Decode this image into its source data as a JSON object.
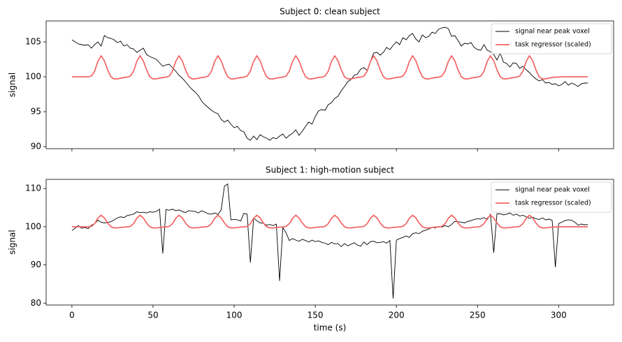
{
  "chart_data": [
    {
      "type": "line",
      "title": "Subject 0: clean subject",
      "ylabel": "signal",
      "x": [
        0,
        2,
        4,
        6,
        8,
        10,
        12,
        14,
        16,
        18,
        20,
        22,
        24,
        26,
        28,
        30,
        32,
        34,
        36,
        38,
        40,
        42,
        44,
        46,
        48,
        50,
        52,
        54,
        56,
        58,
        60,
        62,
        64,
        66,
        68,
        70,
        72,
        74,
        76,
        78,
        80,
        82,
        84,
        86,
        88,
        90,
        92,
        94,
        96,
        98,
        100,
        102,
        104,
        106,
        108,
        110,
        112,
        114,
        116,
        118,
        120,
        122,
        124,
        126,
        128,
        130,
        132,
        134,
        136,
        138,
        140,
        142,
        144,
        146,
        148,
        150,
        152,
        154,
        156,
        158,
        160,
        162,
        164,
        166,
        168,
        170,
        172,
        174,
        176,
        178,
        180,
        182,
        184,
        186,
        188,
        190,
        192,
        194,
        196,
        198,
        200,
        202,
        204,
        206,
        208,
        210,
        212,
        214,
        216,
        218,
        220,
        222,
        224,
        226,
        228,
        230,
        232,
        234,
        236,
        238,
        240,
        242,
        244,
        246,
        248,
        250,
        252,
        254,
        256,
        258,
        260,
        262,
        264,
        266,
        268,
        270,
        272,
        274,
        276,
        278,
        280,
        282,
        284,
        286,
        288,
        290,
        292,
        294,
        296,
        298,
        300,
        302,
        304,
        306,
        308,
        310,
        312,
        314,
        316,
        318
      ],
      "xlim": [
        -15.9,
        333.9
      ],
      "xticks": [
        0,
        50,
        100,
        150,
        200,
        250,
        300
      ],
      "xtick_labels": false,
      "ylim": [
        89.7,
        108
      ],
      "yticks": [
        90,
        95,
        100,
        105
      ],
      "legend": "upper right",
      "series": [
        {
          "name": "signal near peak voxel",
          "color": "#000000",
          "values": [
            105.3,
            105.0,
            104.7,
            104.6,
            104.5,
            104.6,
            104.1,
            104.6,
            105.0,
            104.4,
            105.9,
            105.6,
            105.5,
            105.3,
            104.9,
            105.1,
            104.4,
            104.6,
            104.1,
            104.0,
            103.5,
            103.8,
            104.1,
            103.2,
            102.9,
            102.7,
            102.5,
            102.0,
            101.5,
            101.7,
            101.8,
            101.3,
            100.8,
            100.2,
            99.8,
            99.3,
            98.7,
            98.2,
            97.8,
            97.3,
            96.5,
            96.0,
            95.6,
            95.2,
            94.9,
            94.7,
            93.9,
            93.5,
            93.8,
            93.2,
            92.7,
            92.9,
            92.3,
            92.1,
            91.2,
            90.9,
            91.5,
            91.0,
            91.7,
            91.4,
            91.2,
            90.9,
            91.3,
            91.1,
            91.5,
            91.8,
            91.2,
            91.6,
            91.9,
            92.4,
            91.6,
            92.2,
            92.9,
            93.5,
            93.2,
            94.3,
            95.1,
            95.3,
            95.2,
            96.0,
            96.3,
            96.9,
            97.2,
            98.0,
            98.6,
            99.3,
            99.6,
            100.2,
            100.4,
            101.1,
            101.3,
            100.9,
            102.2,
            103.4,
            103.5,
            103.1,
            103.5,
            104.2,
            103.9,
            104.5,
            105.0,
            104.6,
            105.6,
            105.3,
            105.9,
            106.2,
            105.4,
            105.0,
            106.0,
            105.6,
            105.8,
            106.4,
            106.2,
            106.8,
            107.0,
            107.1,
            106.9,
            105.8,
            105.9,
            105.2,
            104.4,
            104.8,
            104.7,
            104.9,
            104.2,
            103.9,
            103.8,
            104.6,
            103.8,
            103.6,
            103.2,
            102.4,
            103.4,
            102.1,
            101.9,
            101.4,
            102.0,
            101.9,
            101.2,
            101.5,
            101.0,
            100.6,
            100.1,
            99.7,
            99.4,
            99.6,
            99.1,
            99.2,
            98.9,
            99.0,
            98.7,
            98.9,
            99.3,
            98.8,
            99.1,
            98.9,
            98.6,
            99.0,
            99.1,
            99.1
          ]
        },
        {
          "name": "task regressor (scaled)",
          "color": "#f36464",
          "values": [
            100,
            100,
            100,
            100,
            100,
            100,
            100.1,
            100.8,
            102.2,
            103.0,
            102.3,
            101.0,
            100.0,
            99.7,
            99.7,
            99.8,
            99.9,
            99.95,
            100.1,
            100.8,
            102.2,
            103.0,
            102.3,
            101.0,
            100.0,
            99.7,
            99.7,
            99.8,
            99.9,
            99.95,
            100.1,
            100.8,
            102.2,
            103.0,
            102.3,
            101.0,
            100.0,
            99.7,
            99.7,
            99.8,
            99.9,
            99.95,
            100.1,
            100.8,
            102.2,
            103.0,
            102.3,
            101.0,
            100.0,
            99.7,
            99.7,
            99.8,
            99.9,
            99.95,
            100.1,
            100.8,
            102.2,
            103.0,
            102.3,
            101.0,
            100.0,
            99.7,
            99.7,
            99.8,
            99.9,
            99.95,
            100.1,
            100.8,
            102.2,
            103.0,
            102.3,
            101.0,
            100.0,
            99.7,
            99.7,
            99.8,
            99.9,
            99.95,
            100.1,
            100.8,
            102.2,
            103.0,
            102.3,
            101.0,
            100.0,
            99.7,
            99.7,
            99.8,
            99.9,
            99.95,
            100.1,
            100.8,
            102.2,
            103.0,
            102.3,
            101.0,
            100.0,
            99.7,
            99.7,
            99.8,
            99.9,
            99.95,
            100.1,
            100.8,
            102.2,
            103.0,
            102.3,
            101.0,
            100.0,
            99.7,
            99.7,
            99.8,
            99.9,
            99.95,
            100.1,
            100.8,
            102.2,
            103.0,
            102.3,
            101.0,
            100.0,
            99.7,
            99.7,
            99.8,
            99.9,
            99.95,
            100.1,
            100.8,
            102.2,
            103.0,
            102.3,
            101.0,
            100.0,
            99.7,
            99.7,
            99.8,
            99.9,
            99.95,
            100.1,
            100.8,
            102.2,
            103.0,
            102.3,
            101.0,
            100.0,
            99.7,
            99.7,
            99.8,
            99.9,
            99.95,
            99.95,
            100,
            100,
            100,
            100,
            100,
            100,
            100,
            100,
            100
          ]
        }
      ]
    },
    {
      "type": "line",
      "title": "Subject 1: high-motion subject",
      "ylabel": "signal",
      "xlabel": "time (s)",
      "x": [
        0,
        2,
        4,
        6,
        8,
        10,
        12,
        14,
        16,
        18,
        20,
        22,
        24,
        26,
        28,
        30,
        32,
        34,
        36,
        38,
        40,
        42,
        44,
        46,
        48,
        50,
        52,
        54,
        56,
        58,
        60,
        62,
        64,
        66,
        68,
        70,
        72,
        74,
        76,
        78,
        80,
        82,
        84,
        86,
        88,
        90,
        92,
        94,
        96,
        98,
        100,
        102,
        104,
        106,
        108,
        110,
        112,
        114,
        116,
        118,
        120,
        122,
        124,
        126,
        128,
        130,
        132,
        134,
        136,
        138,
        140,
        142,
        144,
        146,
        148,
        150,
        152,
        154,
        156,
        158,
        160,
        162,
        164,
        166,
        168,
        170,
        172,
        174,
        176,
        178,
        180,
        182,
        184,
        186,
        188,
        190,
        192,
        194,
        196,
        198,
        200,
        202,
        204,
        206,
        208,
        210,
        212,
        214,
        216,
        218,
        220,
        222,
        224,
        226,
        228,
        230,
        232,
        234,
        236,
        238,
        240,
        242,
        244,
        246,
        248,
        250,
        252,
        254,
        256,
        258,
        260,
        262,
        264,
        266,
        268,
        270,
        272,
        274,
        276,
        278,
        280,
        282,
        284,
        286,
        288,
        290,
        292,
        294,
        296,
        298,
        300,
        302,
        304,
        306,
        308,
        310,
        312,
        314,
        316,
        318
      ],
      "xlim": [
        -15.9,
        333.9
      ],
      "xticks": [
        0,
        50,
        100,
        150,
        200,
        250,
        300
      ],
      "xtick_labels": true,
      "ylim": [
        79.5,
        112.4
      ],
      "yticks": [
        80,
        90,
        100,
        110
      ],
      "legend": "upper right",
      "series": [
        {
          "name": "signal near peak voxel",
          "color": "#000000",
          "values": [
            99.0,
            99.6,
            100.3,
            99.6,
            99.8,
            99.5,
            100.4,
            100.8,
            101.7,
            101.2,
            101.0,
            101.1,
            101.3,
            101.8,
            102.3,
            102.6,
            102.4,
            102.9,
            103.1,
            103.3,
            103.9,
            103.7,
            103.8,
            103.6,
            103.9,
            103.8,
            104.0,
            104.6,
            93.0,
            104.5,
            104.3,
            104.6,
            104.2,
            104.4,
            104.0,
            103.7,
            104.2,
            104.1,
            104.0,
            103.6,
            104.2,
            103.8,
            103.4,
            103.3,
            103.6,
            103.2,
            104.4,
            110.6,
            111.2,
            101.8,
            101.9,
            101.8,
            101.5,
            103.5,
            103.3,
            90.6,
            102.2,
            101.6,
            101.0,
            100.9,
            100.4,
            100.6,
            100.3,
            100.7,
            85.8,
            99.8,
            98.4,
            96.4,
            96.9,
            96.5,
            96.2,
            96.7,
            96.4,
            96.0,
            96.5,
            96.1,
            96.3,
            95.9,
            95.7,
            95.3,
            95.9,
            95.5,
            95.6,
            94.8,
            95.6,
            95.0,
            95.4,
            95.8,
            95.2,
            94.9,
            96.0,
            95.3,
            96.1,
            96.2,
            95.8,
            95.9,
            96.1,
            95.7,
            96.4,
            81.2,
            96.5,
            96.9,
            97.2,
            97.6,
            97.2,
            98.2,
            98.4,
            98.2,
            98.8,
            99.1,
            99.4,
            99.8,
            99.7,
            100.1,
            99.9,
            100.3,
            100.0,
            100.6,
            101.4,
            101.3,
            101.2,
            101.0,
            101.4,
            101.6,
            101.9,
            102.1,
            102.0,
            102.4,
            101.9,
            103.3,
            93.2,
            103.4,
            103.4,
            103.1,
            103.3,
            103.6,
            103.0,
            103.3,
            102.8,
            103.0,
            102.6,
            102.2,
            102.5,
            102.1,
            101.9,
            102.3,
            101.8,
            102.0,
            101.7,
            89.4,
            100.8,
            101.2,
            101.6,
            101.8,
            101.7,
            101.2,
            100.4,
            100.7,
            100.5,
            100.6
          ]
        },
        {
          "name": "task regressor (scaled)",
          "color": "#f36464",
          "values": [
            100,
            100,
            100,
            100,
            100,
            100,
            100.1,
            100.8,
            102.2,
            103.0,
            102.3,
            101.0,
            100.0,
            99.7,
            99.7,
            99.8,
            99.9,
            99.95,
            100.1,
            100.8,
            102.2,
            103.0,
            102.3,
            101.0,
            100.0,
            99.7,
            99.7,
            99.8,
            99.9,
            99.95,
            100.1,
            100.8,
            102.2,
            103.0,
            102.3,
            101.0,
            100.0,
            99.7,
            99.7,
            99.8,
            99.9,
            99.95,
            100.1,
            100.8,
            102.2,
            103.0,
            102.3,
            101.0,
            100.0,
            99.7,
            99.7,
            99.8,
            99.9,
            99.95,
            100.1,
            100.8,
            102.2,
            103.0,
            102.3,
            101.0,
            100.0,
            99.7,
            99.7,
            99.8,
            99.9,
            99.95,
            100.1,
            100.8,
            102.2,
            103.0,
            102.3,
            101.0,
            100.0,
            99.7,
            99.7,
            99.8,
            99.9,
            99.95,
            100.1,
            100.8,
            102.2,
            103.0,
            102.3,
            101.0,
            100.0,
            99.7,
            99.7,
            99.8,
            99.9,
            99.95,
            100.1,
            100.8,
            102.2,
            103.0,
            102.3,
            101.0,
            100.0,
            99.7,
            99.7,
            99.8,
            99.9,
            99.95,
            100.1,
            100.8,
            102.2,
            103.0,
            102.3,
            101.0,
            100.0,
            99.7,
            99.7,
            99.8,
            99.9,
            99.95,
            100.1,
            100.8,
            102.2,
            103.0,
            102.3,
            101.0,
            100.0,
            99.7,
            99.7,
            99.8,
            99.9,
            99.95,
            100.1,
            100.8,
            102.2,
            103.0,
            102.3,
            101.0,
            100.0,
            99.7,
            99.7,
            99.8,
            99.9,
            99.95,
            100.1,
            100.8,
            102.2,
            103.0,
            102.3,
            101.0,
            100.0,
            99.7,
            99.7,
            99.8,
            99.9,
            99.95,
            99.95,
            100,
            100,
            100,
            100,
            100,
            100,
            100,
            100,
            100
          ]
        }
      ]
    }
  ]
}
